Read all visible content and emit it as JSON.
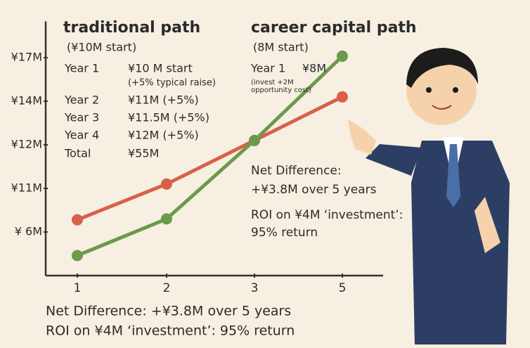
{
  "chart_data": {
    "type": "line",
    "categories": [
      "1",
      "2",
      "3",
      "5"
    ],
    "series": [
      {
        "name": "traditional path",
        "color": "#d8604a",
        "values": [
          7.4,
          11.1,
          12.2,
          14.3
        ]
      },
      {
        "name": "career capital path",
        "color": "#6b9a4b",
        "values": [
          3.3,
          7.5,
          12.2,
          17.1
        ]
      }
    ],
    "ylim": [
      1,
      19.5
    ],
    "yticks": [
      {
        "value": 6,
        "label": "¥ 6M"
      },
      {
        "value": 11,
        "label": "¥11M"
      },
      {
        "value": 12,
        "label": "¥12M"
      },
      {
        "value": 14,
        "label": "¥14M"
      },
      {
        "value": 17,
        "label": "¥17M"
      }
    ],
    "traditional_notes": {
      "subtitle": "(¥10M start)",
      "rows": [
        [
          "Year 1",
          "¥10 M start",
          "(+5% typical raise)"
        ],
        [
          "Year 2",
          "¥11M   (+5%)"
        ],
        [
          "Year 3",
          "¥11.5M (+5%)"
        ],
        [
          "Year 4",
          "¥12M   (+5%)"
        ],
        [
          "Total",
          "¥55M"
        ]
      ]
    },
    "career_notes": {
      "subtitle": "(8M start)",
      "rows": [
        [
          "Year 1",
          "¥8M",
          "(invest +2M",
          "opportunity cost)"
        ]
      ],
      "summary": [
        "Net Difference:",
        "+¥3.8M over 5 years",
        "ROI on ¥4M ‘investment’:",
        "95% return"
      ]
    },
    "footer": [
      "Net Difference: +¥3.8M over 5 years",
      "ROI on ¥4M ‘investment’: 95% return"
    ]
  }
}
